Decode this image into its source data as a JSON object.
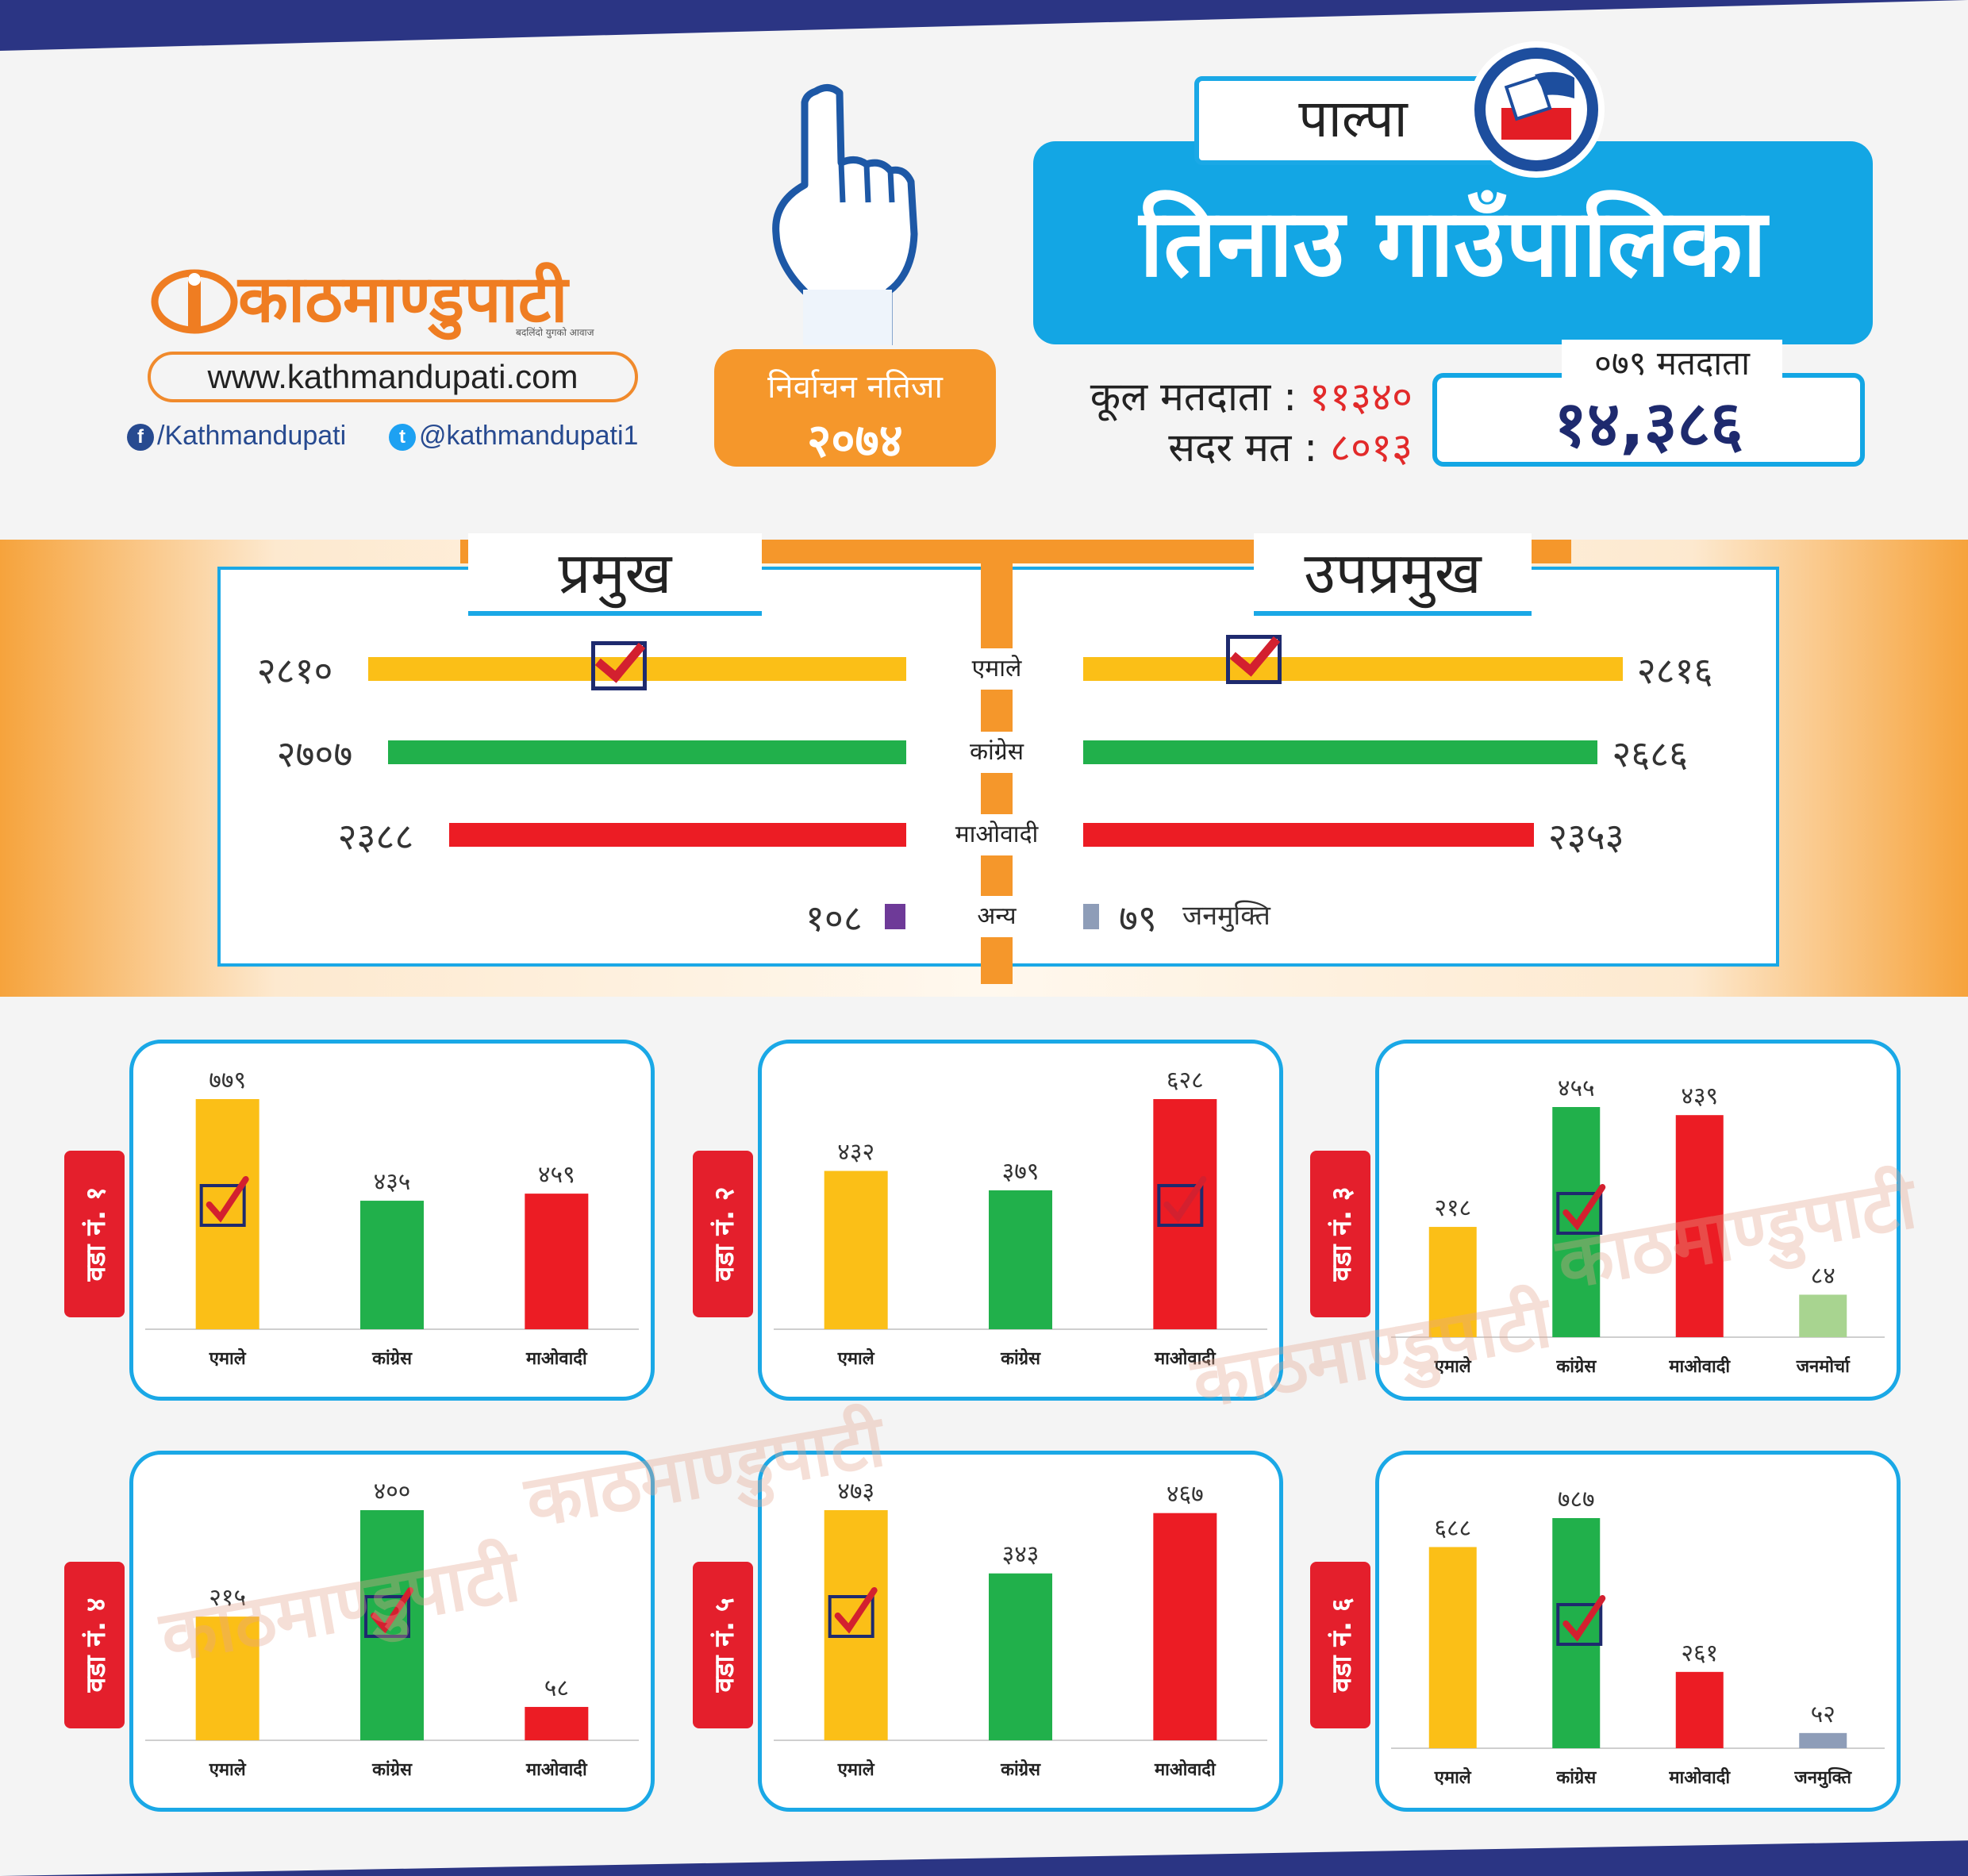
{
  "header": {
    "logo_text": "काठमाण्डुपाटी",
    "logo_tagline": "बदलिंदो युगको आवाज",
    "website": "www.kathmandupati.com",
    "facebook": "/Kathmandupati",
    "twitter": "@kathmandupati1",
    "badge_line1": "निर्वाचन नतिजा",
    "badge_line2": "२०७४",
    "district": "पाल्पा",
    "municipality": "तिनाउ गाउँपालिका",
    "total_voters_label": "कूल मतदाता :",
    "total_voters": "११३४०",
    "valid_votes_label": "सदर मत :",
    "valid_votes": "८०१३",
    "voters_079_label": "०७९ मतदाता",
    "voters_079": "१४,३८६"
  },
  "colors": {
    "uml": "#fbbf17",
    "congress": "#21b04b",
    "maoist": "#ec1c24",
    "other_purple": "#6e3a98",
    "janamukti": "#8e9db8",
    "janamorcha": "#a8d490",
    "accent_blue": "#13a6e4",
    "accent_orange": "#f5972b"
  },
  "chart_data": [
    {
      "type": "bar",
      "title": "प्रमुख",
      "categories": [
        "एमाले",
        "कांग्रेस",
        "माओवादी"
      ],
      "values": [
        2810,
        2707,
        2388
      ],
      "value_labels": [
        "२८१०",
        "२७०७",
        "२३८८"
      ],
      "winner": "एमाले",
      "others": [
        {
          "name": "अन्य",
          "value": 108,
          "label": "१०८"
        }
      ]
    },
    {
      "type": "bar",
      "title": "उपप्रमुख",
      "categories": [
        "एमाले",
        "कांग्रेस",
        "माओवादी"
      ],
      "values": [
        2816,
        2686,
        2353
      ],
      "value_labels": [
        "२८१६",
        "२६८६",
        "२३५३"
      ],
      "winner": "एमाले",
      "others": [
        {
          "name": "जनमुक्ति",
          "value": 79,
          "label": "७९"
        }
      ]
    },
    {
      "type": "bar",
      "title": "वडा नं. १",
      "categories": [
        "एमाले",
        "कांग्रेस",
        "माओवादी"
      ],
      "values": [
        779,
        435,
        459
      ],
      "value_labels": [
        "७७९",
        "४३५",
        "४५९"
      ],
      "winner": "एमाले"
    },
    {
      "type": "bar",
      "title": "वडा नं. २",
      "categories": [
        "एमाले",
        "कांग्रेस",
        "माओवादी"
      ],
      "values": [
        432,
        379,
        628
      ],
      "value_labels": [
        "४३२",
        "३७९",
        "६२८"
      ],
      "winner": "माओवादी"
    },
    {
      "type": "bar",
      "title": "वडा नं. ३",
      "categories": [
        "एमाले",
        "कांग्रेस",
        "माओवादी",
        "जनमोर्चा"
      ],
      "values": [
        218,
        455,
        439,
        84
      ],
      "value_labels": [
        "२१८",
        "४५५",
        "४३९",
        "८४"
      ],
      "winner": "कांग्रेस"
    },
    {
      "type": "bar",
      "title": "वडा नं. ४",
      "categories": [
        "एमाले",
        "कांग्रेस",
        "माओवादी"
      ],
      "values": [
        215,
        400,
        58
      ],
      "value_labels": [
        "२१५",
        "४००",
        "५८"
      ],
      "winner": "कांग्रेस"
    },
    {
      "type": "bar",
      "title": "वडा नं. ५",
      "categories": [
        "एमाले",
        "कांग्रेस",
        "माओवादी"
      ],
      "values": [
        473,
        343,
        467
      ],
      "value_labels": [
        "४७३",
        "३४३",
        "४६७"
      ],
      "winner": "एमाले"
    },
    {
      "type": "bar",
      "title": "वडा नं. ६",
      "categories": [
        "एमाले",
        "कांग्रेस",
        "माओवादी",
        "जनमुक्ति"
      ],
      "values": [
        688,
        787,
        261,
        52
      ],
      "value_labels": [
        "६८८",
        "७८७",
        "२६१",
        "५२"
      ],
      "winner": "कांग्रेस"
    }
  ]
}
